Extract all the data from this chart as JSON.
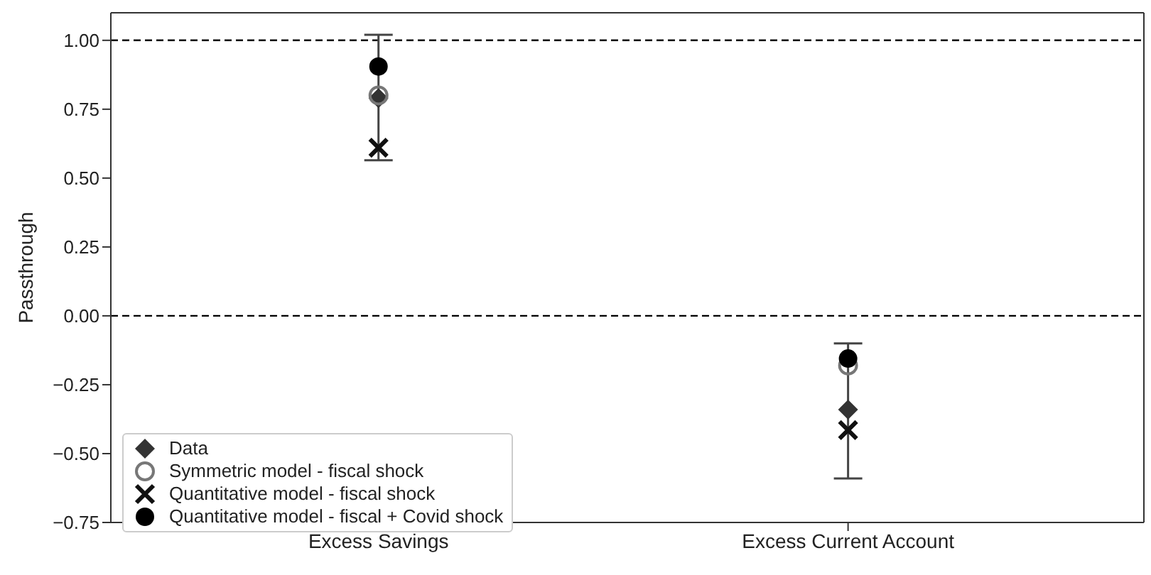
{
  "chart_data": {
    "type": "scatter",
    "ylabel": "Passthrough",
    "categories": [
      "Excess Savings",
      "Excess Current Account"
    ],
    "ylim": [
      -0.75,
      1.1
    ],
    "yticks": [
      {
        "value": 1,
        "label": "1.00"
      },
      {
        "value": 0.75,
        "label": "0.75"
      },
      {
        "value": 0.5,
        "label": "0.50"
      },
      {
        "value": 0.25,
        "label": "0.25"
      },
      {
        "value": 0,
        "label": "0.00"
      },
      {
        "value": -0.25,
        "label": "−0.25"
      },
      {
        "value": -0.5,
        "label": "−0.50"
      },
      {
        "value": -0.75,
        "label": "−0.75"
      }
    ],
    "series": [
      {
        "name": "Data",
        "color": "#333333",
        "marker": "diamond",
        "values": [
          0.79,
          -0.34
        ],
        "errors": [
          [
            0.565,
            1.02
          ],
          [
            -0.59,
            -0.1
          ]
        ]
      },
      {
        "name": "Symmetric model - fiscal shock",
        "color": "#777777",
        "marker": "circle",
        "values": [
          0.8,
          -0.18
        ]
      },
      {
        "name": "Quantitative model - fiscal shock",
        "color": "#111111",
        "marker": "cross",
        "values": [
          0.61,
          -0.415
        ]
      },
      {
        "name": "Quantitative model - fiscal + Covid shock",
        "color": "#000000",
        "marker": "circle",
        "values": [
          0.905,
          -0.155
        ]
      }
    ],
    "ref_lines": [
      {
        "axis": "y",
        "value": 1,
        "line_style": "dashed",
        "color": "#000000"
      },
      {
        "axis": "y",
        "value": 0,
        "line_style": "dashed",
        "color": "#000000"
      }
    ],
    "grid": false,
    "legend": "bottom left"
  }
}
